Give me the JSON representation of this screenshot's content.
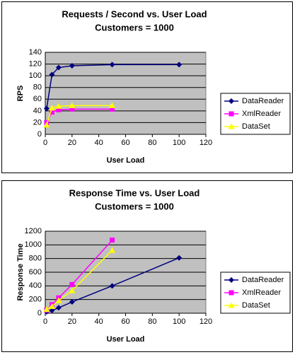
{
  "chart_data": [
    {
      "type": "line",
      "title": "Requests / Second  vs.  User Load",
      "subtitle": "Customers = 1000",
      "xlabel": "User Load",
      "ylabel": "RPS",
      "xlim": [
        0,
        120
      ],
      "xticks": [
        0,
        20,
        40,
        60,
        80,
        100,
        120
      ],
      "ylim": [
        0,
        140
      ],
      "yticks": [
        0,
        20,
        40,
        60,
        80,
        100,
        120,
        140
      ],
      "grid": true,
      "series": [
        {
          "name": "DataReader",
          "color": "#000080",
          "marker": "diamond",
          "x": [
            1,
            5,
            10,
            20,
            50,
            100
          ],
          "values": [
            44,
            102,
            114,
            117,
            119,
            119
          ]
        },
        {
          "name": "XmlReader",
          "color": "#ff00ff",
          "marker": "square",
          "x": [
            1,
            5,
            10,
            20,
            50
          ],
          "values": [
            20,
            38,
            42,
            43,
            43
          ]
        },
        {
          "name": "DataSet",
          "color": "#ffff00",
          "marker": "triangle",
          "x": [
            1,
            5,
            10,
            20,
            50
          ],
          "values": [
            16,
            45,
            48,
            49,
            49
          ]
        }
      ]
    },
    {
      "type": "line",
      "title": "Response Time  vs.  User Load",
      "subtitle": "Customers = 1000",
      "xlabel": "User Load",
      "ylabel": "Response Time",
      "xlim": [
        0,
        120
      ],
      "xticks": [
        0,
        20,
        40,
        60,
        80,
        100,
        120
      ],
      "ylim": [
        0,
        1200
      ],
      "yticks": [
        0,
        200,
        400,
        600,
        800,
        1000,
        1200
      ],
      "grid": true,
      "series": [
        {
          "name": "DataReader",
          "color": "#000080",
          "marker": "diamond",
          "x": [
            1,
            5,
            10,
            20,
            50,
            100
          ],
          "values": [
            20,
            40,
            80,
            165,
            400,
            810
          ]
        },
        {
          "name": "XmlReader",
          "color": "#ff00ff",
          "marker": "square",
          "x": [
            1,
            5,
            10,
            20,
            50
          ],
          "values": [
            45,
            125,
            225,
            420,
            1070
          ]
        },
        {
          "name": "DataSet",
          "color": "#ffff00",
          "marker": "triangle",
          "x": [
            1,
            5,
            10,
            20,
            50
          ],
          "values": [
            55,
            100,
            185,
            330,
            920
          ]
        }
      ]
    }
  ]
}
